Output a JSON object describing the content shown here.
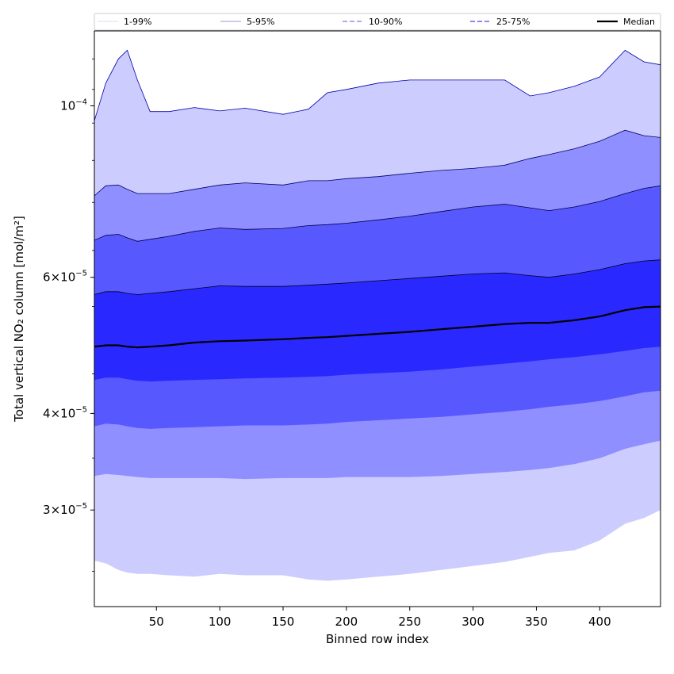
{
  "chart_data": {
    "type": "area",
    "title": "",
    "xlabel": "Binned row index",
    "ylabel": "Total vertical NO₂ column [mol/m²]",
    "yscale": "log",
    "xlim": [
      1,
      448
    ],
    "ylim": [
      2.25e-05,
      0.000125
    ],
    "grid": false,
    "legend_position": "top",
    "x_ticks": [
      50,
      100,
      150,
      200,
      250,
      300,
      350,
      400
    ],
    "x_tick_labels": [
      "50",
      "100",
      "150",
      "200",
      "250",
      "300",
      "350",
      "400"
    ],
    "y_ticks": [
      {
        "value": 0.0001,
        "mantissa": "",
        "base": "10",
        "exponent": "−4"
      },
      {
        "value": 6e-05,
        "mantissa": "6",
        "base": "10",
        "exponent": "−5"
      },
      {
        "value": 4e-05,
        "mantissa": "4",
        "base": "10",
        "exponent": "−5"
      },
      {
        "value": 3e-05,
        "mantissa": "3",
        "base": "10",
        "exponent": "−5"
      }
    ],
    "x": [
      1,
      10,
      20,
      27,
      35,
      45,
      60,
      80,
      100,
      120,
      150,
      170,
      185,
      200,
      225,
      250,
      275,
      300,
      325,
      345,
      360,
      380,
      400,
      420,
      435,
      448
    ],
    "bands": [
      {
        "name": "1-99%",
        "color": "#ccccff",
        "edge": "#0000aa",
        "low": [
          2.58e-05,
          2.56e-05,
          2.51e-05,
          2.49e-05,
          2.48e-05,
          2.48e-05,
          2.47e-05,
          2.46e-05,
          2.48e-05,
          2.47e-05,
          2.47e-05,
          2.44e-05,
          2.43e-05,
          2.44e-05,
          2.46e-05,
          2.48e-05,
          2.51e-05,
          2.54e-05,
          2.57e-05,
          2.61e-05,
          2.64e-05,
          2.66e-05,
          2.74e-05,
          2.88e-05,
          2.93e-05,
          3e-05
        ],
        "high": [
          9.57e-05,
          0.000107,
          0.000115,
          0.000118,
          0.000108,
          9.83e-05,
          9.83e-05,
          9.95e-05,
          9.85e-05,
          9.93e-05,
          9.75e-05,
          9.9e-05,
          0.000104,
          0.000105,
          0.000107,
          0.000108,
          0.000108,
          0.000108,
          0.000108,
          0.000103,
          0.000104,
          0.000106,
          0.000109,
          0.000118,
          0.000114,
          0.000113
        ]
      },
      {
        "name": "5-95%",
        "color": "#8f8fff",
        "edge": "#000066",
        "low": [
          3.32e-05,
          3.34e-05,
          3.33e-05,
          3.32e-05,
          3.31e-05,
          3.3e-05,
          3.3e-05,
          3.3e-05,
          3.3e-05,
          3.29e-05,
          3.3e-05,
          3.3e-05,
          3.3e-05,
          3.31e-05,
          3.31e-05,
          3.31e-05,
          3.32e-05,
          3.34e-05,
          3.36e-05,
          3.38e-05,
          3.4e-05,
          3.44e-05,
          3.5e-05,
          3.6e-05,
          3.65e-05,
          3.69e-05
        ],
        "high": [
          7.65e-05,
          7.88e-05,
          7.9e-05,
          7.8e-05,
          7.7e-05,
          7.7e-05,
          7.7e-05,
          7.8e-05,
          7.9e-05,
          7.95e-05,
          7.9e-05,
          8e-05,
          8e-05,
          8.05e-05,
          8.1e-05,
          8.18e-05,
          8.25e-05,
          8.3e-05,
          8.38e-05,
          8.55e-05,
          8.65e-05,
          8.8e-05,
          9e-05,
          9.3e-05,
          9.15e-05,
          9.1e-05
        ]
      },
      {
        "name": "10-90%",
        "color": "#5858ff",
        "edge": "#000044",
        "low": [
          3.85e-05,
          3.88e-05,
          3.87e-05,
          3.85e-05,
          3.83e-05,
          3.82e-05,
          3.83e-05,
          3.84e-05,
          3.85e-05,
          3.86e-05,
          3.86e-05,
          3.87e-05,
          3.88e-05,
          3.9e-05,
          3.92e-05,
          3.94e-05,
          3.96e-05,
          3.99e-05,
          4.02e-05,
          4.05e-05,
          4.08e-05,
          4.11e-05,
          4.15e-05,
          4.21e-05,
          4.26e-05,
          4.28e-05
        ],
        "high": [
          6.7e-05,
          6.8e-05,
          6.82e-05,
          6.75e-05,
          6.68e-05,
          6.72e-05,
          6.78e-05,
          6.88e-05,
          6.95e-05,
          6.92e-05,
          6.94e-05,
          7e-05,
          7.02e-05,
          7.05e-05,
          7.12e-05,
          7.2e-05,
          7.3e-05,
          7.4e-05,
          7.46e-05,
          7.38e-05,
          7.32e-05,
          7.4e-05,
          7.52e-05,
          7.7e-05,
          7.82e-05,
          7.88e-05
        ]
      },
      {
        "name": "25-75%",
        "color": "#2929ff",
        "edge": "#000022",
        "low": [
          4.42e-05,
          4.45e-05,
          4.45e-05,
          4.43e-05,
          4.41e-05,
          4.4e-05,
          4.41e-05,
          4.42e-05,
          4.43e-05,
          4.44e-05,
          4.45e-05,
          4.46e-05,
          4.47e-05,
          4.49e-05,
          4.51e-05,
          4.53e-05,
          4.56e-05,
          4.6e-05,
          4.64e-05,
          4.67e-05,
          4.7e-05,
          4.73e-05,
          4.77e-05,
          4.82e-05,
          4.86e-05,
          4.88e-05
        ],
        "high": [
          5.7e-05,
          5.75e-05,
          5.75e-05,
          5.72e-05,
          5.7e-05,
          5.72e-05,
          5.75e-05,
          5.8e-05,
          5.85e-05,
          5.84e-05,
          5.84e-05,
          5.86e-05,
          5.88e-05,
          5.9e-05,
          5.94e-05,
          5.98e-05,
          6.02e-05,
          6.06e-05,
          6.08e-05,
          6.03e-05,
          6e-05,
          6.06e-05,
          6.14e-05,
          6.25e-05,
          6.3e-05,
          6.32e-05
        ]
      }
    ],
    "median": {
      "name": "Median",
      "color": "#000000",
      "values": [
        4.88e-05,
        4.9e-05,
        4.9e-05,
        4.88e-05,
        4.87e-05,
        4.88e-05,
        4.9e-05,
        4.94e-05,
        4.96e-05,
        4.97e-05,
        4.99e-05,
        5.01e-05,
        5.02e-05,
        5.04e-05,
        5.07e-05,
        5.1e-05,
        5.14e-05,
        5.18e-05,
        5.22e-05,
        5.24e-05,
        5.24e-05,
        5.28e-05,
        5.34e-05,
        5.44e-05,
        5.49e-05,
        5.5e-05
      ]
    },
    "legend": [
      {
        "label": "1-99%",
        "line_color": "#dcdcf5",
        "dash": "",
        "width": 1
      },
      {
        "label": "5-95%",
        "line_color": "#9a9acc",
        "dash": "",
        "width": 1
      },
      {
        "label": "10-90%",
        "line_color": "#7a7aee",
        "dash": "6,3",
        "width": 1.2
      },
      {
        "label": "25-75%",
        "line_color": "#4848dd",
        "dash": "6,3",
        "width": 1.2
      },
      {
        "label": "Median",
        "line_color": "#000000",
        "dash": "",
        "width": 2.2
      }
    ]
  }
}
